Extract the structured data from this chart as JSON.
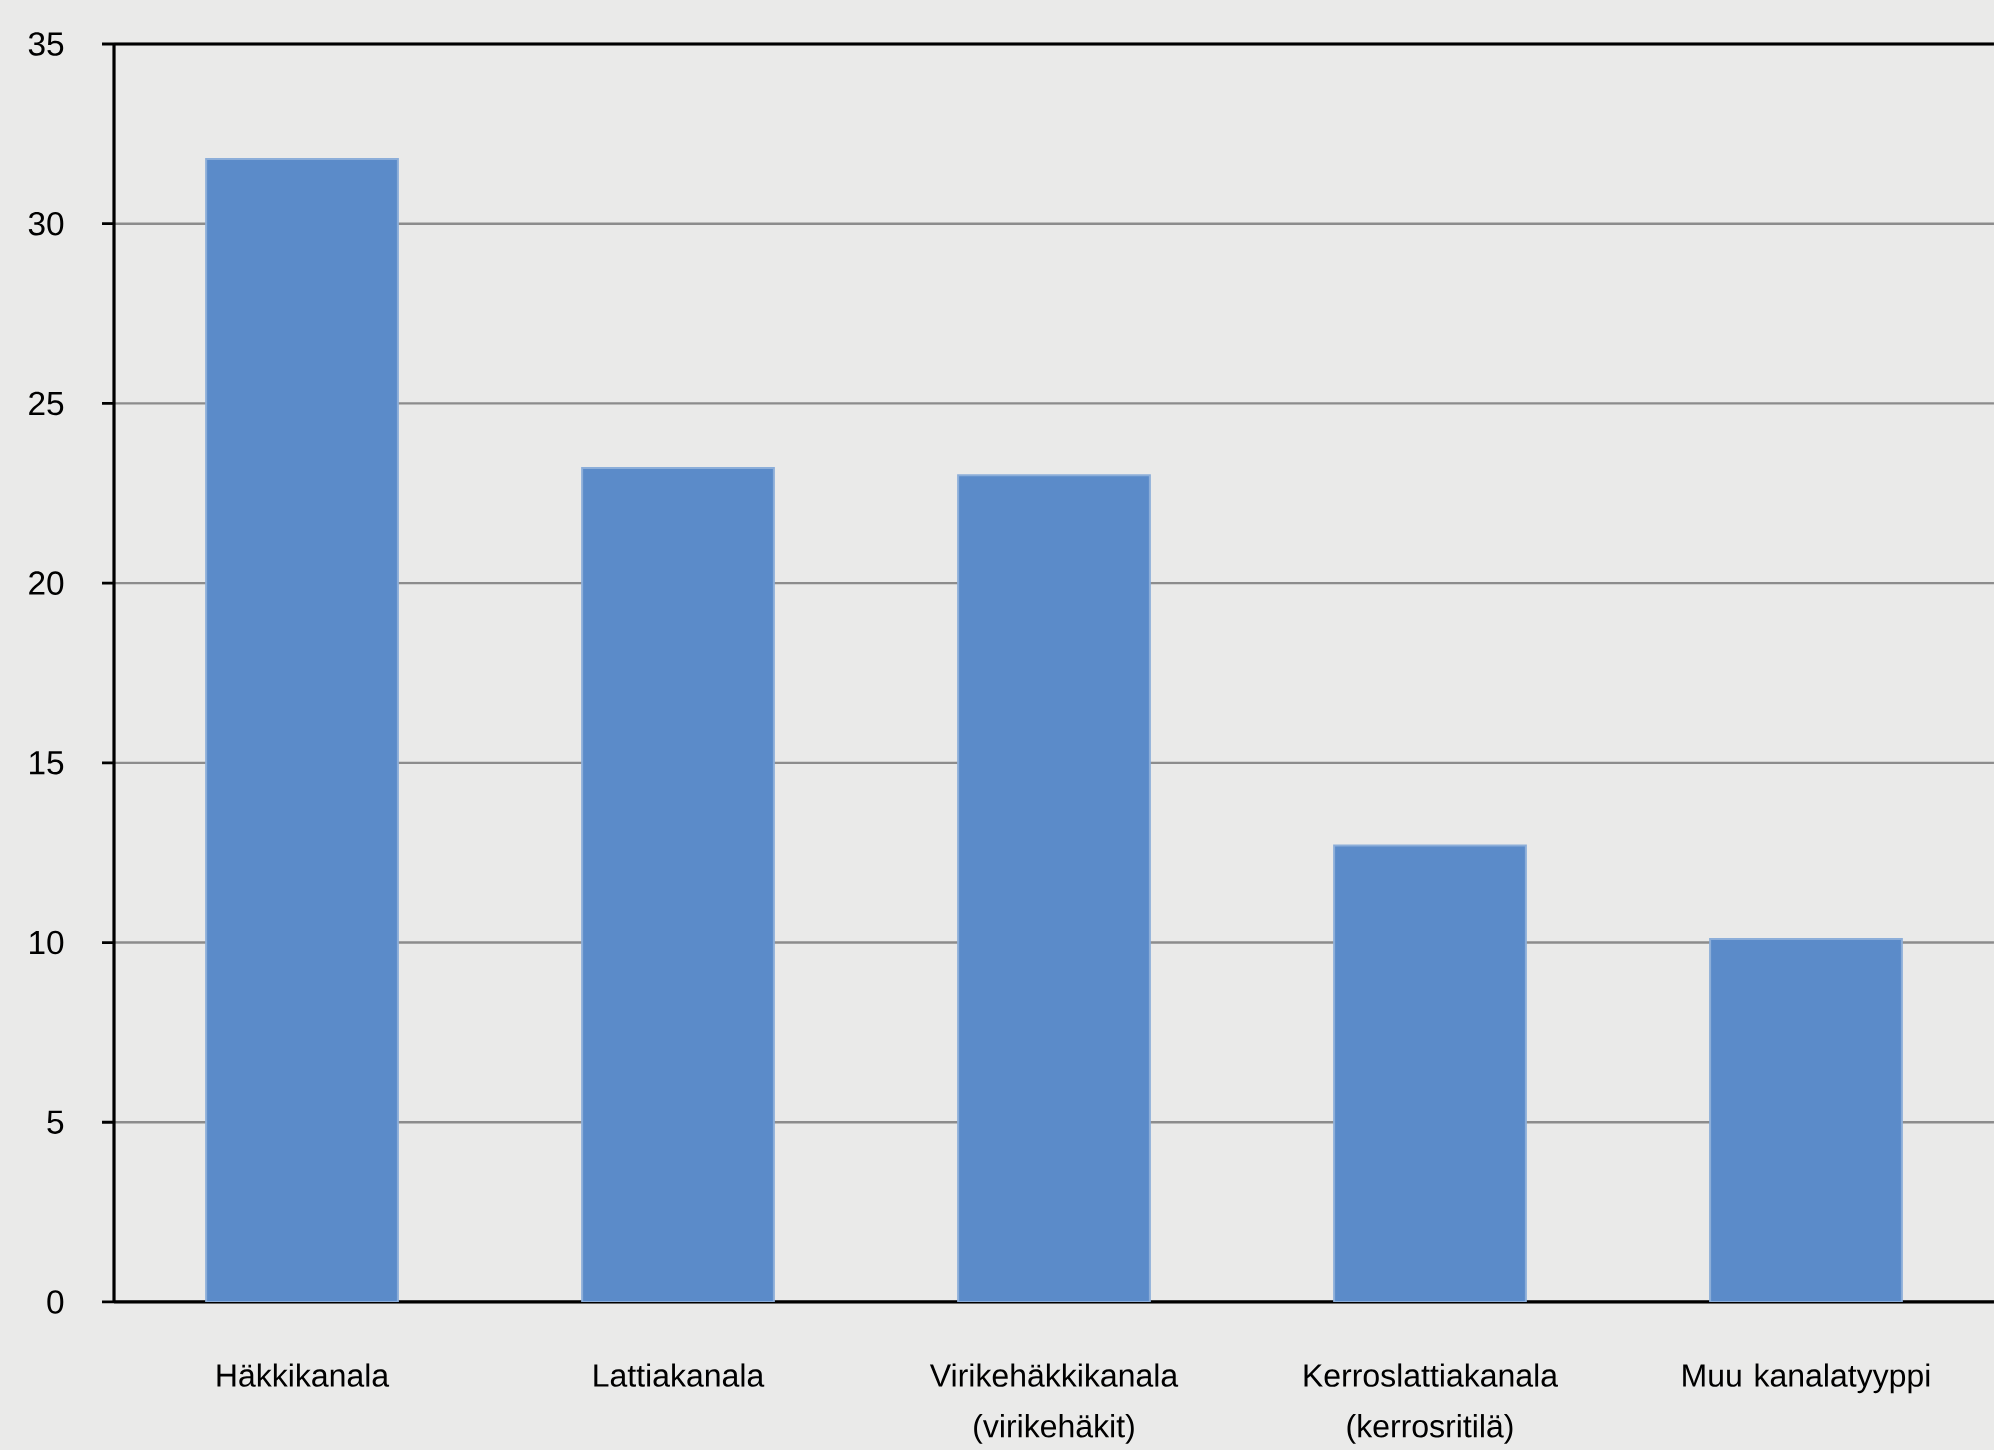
{
  "chart_data": {
    "type": "bar",
    "categories": [
      "Häkkikanala",
      "Lattiakanala",
      "Virikehäkkikanala (virikehäkit)",
      "Kerroslattiakanala (kerrosritilä)",
      "Muu kanalatyyppi"
    ],
    "values": [
      31.8,
      23.2,
      23.0,
      12.7,
      10.1
    ],
    "color": "#5b8bc9",
    "ylim": [
      0,
      35
    ],
    "yticks": [
      0,
      5,
      10,
      15,
      20,
      25,
      30,
      35
    ],
    "grid": "y"
  }
}
